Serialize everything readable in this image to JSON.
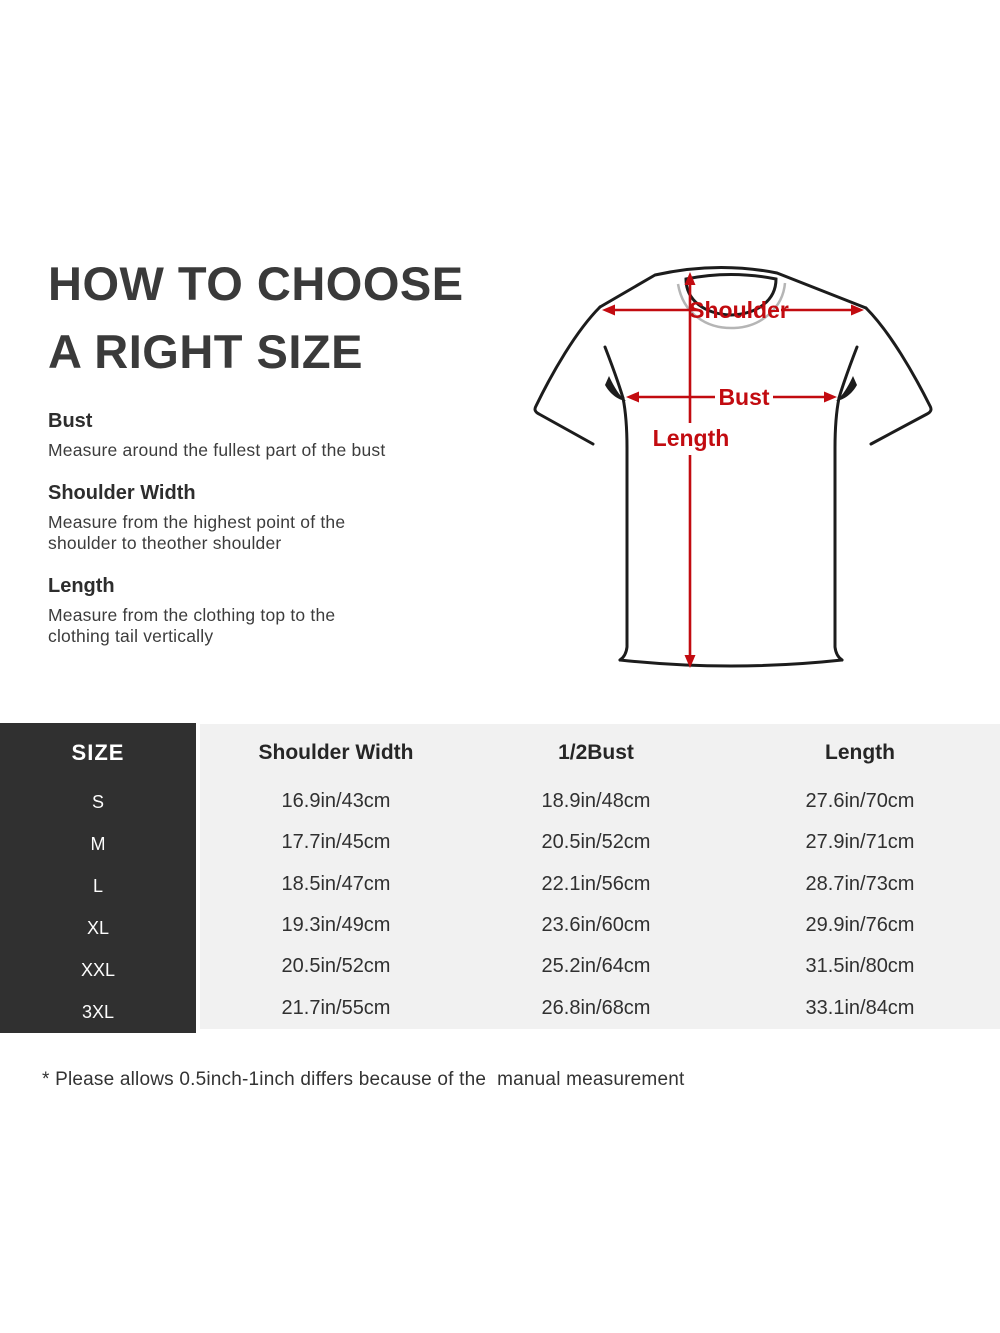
{
  "header": {
    "title_line1": "HOW TO CHOOSE",
    "title_line2": "A RIGHT SIZE"
  },
  "instructions": [
    {
      "heading": "Bust",
      "lines": [
        "Measure around the fullest part of the bust",
        ""
      ]
    },
    {
      "heading": "Shoulder Width",
      "lines": [
        "Measure from the highest point of the",
        "shoulder to theother shoulder"
      ]
    },
    {
      "heading": "Length",
      "lines": [
        "Measure from the clothing top to the",
        "clothing tail vertically"
      ]
    }
  ],
  "diagram": {
    "labels": {
      "shoulder": "Shoulder",
      "bust": "Bust",
      "length": "Length"
    },
    "arrow_color": "#c20b10",
    "outline_color": "#1c1c1c"
  },
  "table": {
    "header": {
      "size": "SIZE",
      "shoulder_width": "Shoulder Width",
      "half_bust": "1/2Bust",
      "length": "Length"
    },
    "rows": [
      {
        "size": "S",
        "shoulder_width": "16.9in/43cm",
        "half_bust": "18.9in/48cm",
        "length": "27.6in/70cm"
      },
      {
        "size": "M",
        "shoulder_width": "17.7in/45cm",
        "half_bust": "20.5in/52cm",
        "length": "27.9in/71cm"
      },
      {
        "size": "L",
        "shoulder_width": "18.5in/47cm",
        "half_bust": "22.1in/56cm",
        "length": "28.7in/73cm"
      },
      {
        "size": "XL",
        "shoulder_width": "19.3in/49cm",
        "half_bust": "23.6in/60cm",
        "length": "29.9in/76cm"
      },
      {
        "size": "XXL",
        "shoulder_width": "20.5in/52cm",
        "half_bust": "25.2in/64cm",
        "length": "31.5in/80cm"
      },
      {
        "size": "3XL",
        "shoulder_width": "21.7in/55cm",
        "half_bust": "26.8in/68cm",
        "length": "33.1in/84cm"
      }
    ],
    "colors": {
      "header_bg": "#303030",
      "header_text": "#ffffff",
      "body_bg": "#f1f1f1"
    }
  },
  "footnote": "* Please allows 0.5inch-1inch differs because of the  manual measurement"
}
